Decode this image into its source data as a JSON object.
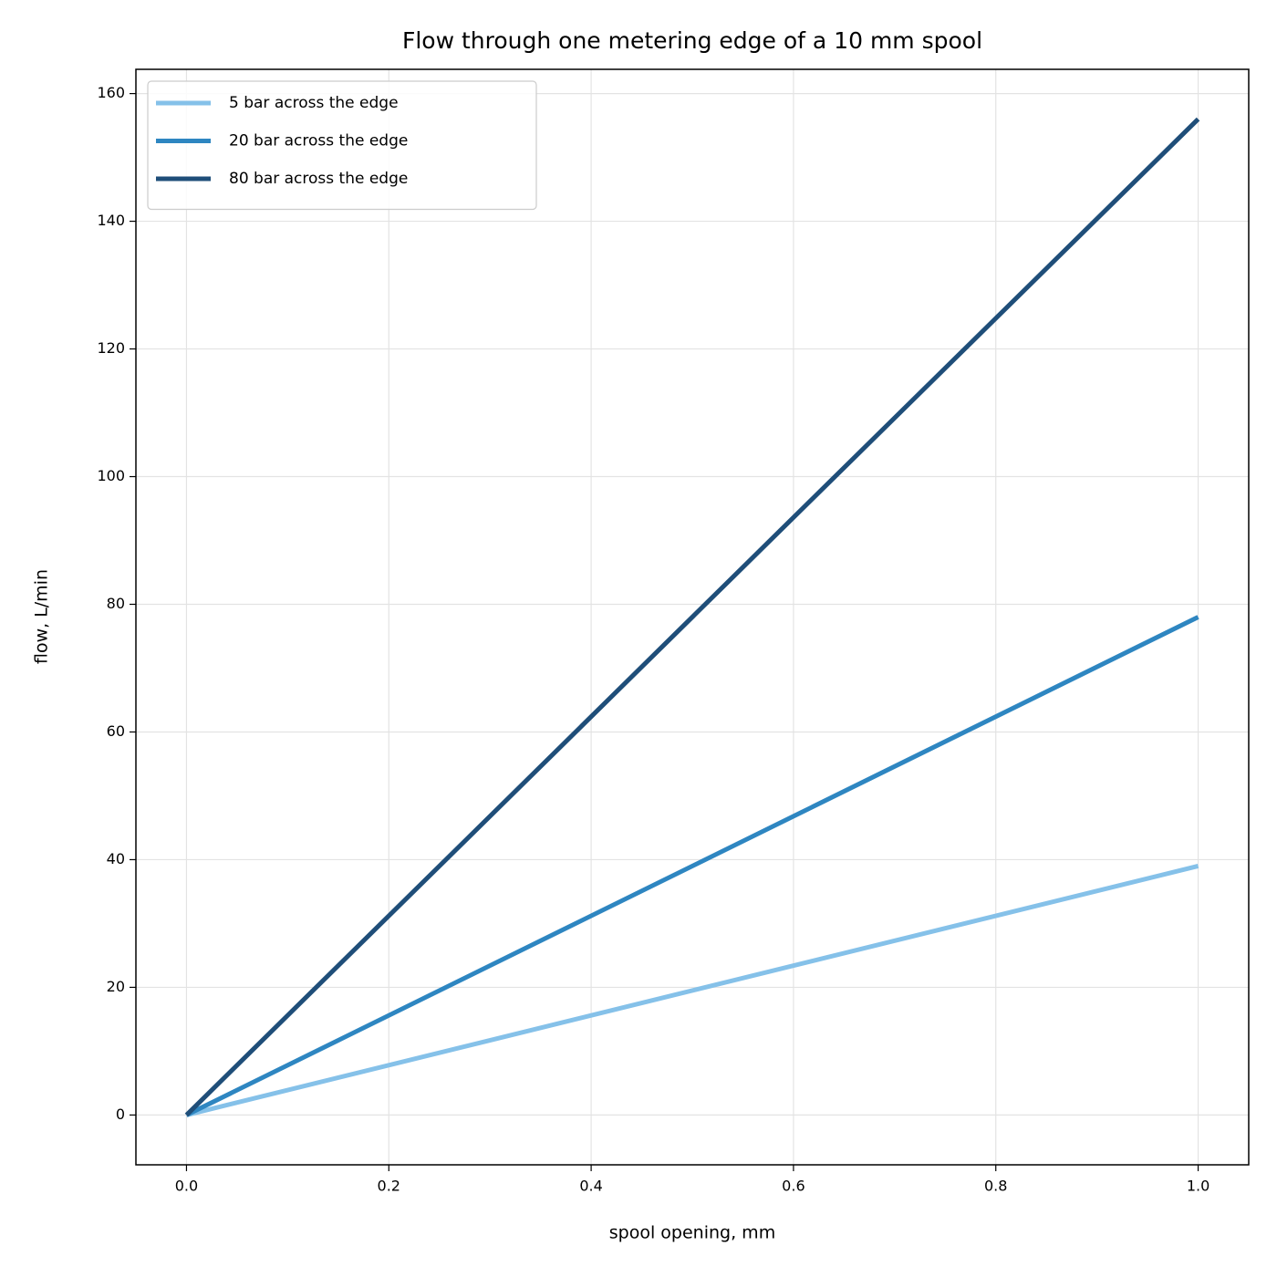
{
  "chart_data": {
    "type": "line",
    "title": "Flow through one metering edge of a 10 mm spool",
    "x_label": "spool opening, mm",
    "y_label": "flow, L/min",
    "x": [
      0,
      1
    ],
    "series": [
      {
        "name": "5 bar across the edge",
        "color": "#85c1e9",
        "values": [
          0,
          39
        ]
      },
      {
        "name": "20 bar across the edge",
        "color": "#2e86c1",
        "values": [
          0,
          78
        ]
      },
      {
        "name": "80 bar across the edge",
        "color": "#1f4e79",
        "values": [
          0,
          156
        ]
      }
    ],
    "xlim": [
      -0.05,
      1.05
    ],
    "ylim": [
      -7.8,
      163.8
    ],
    "xticks": [
      {
        "value": 0,
        "label": "0.0"
      },
      {
        "value": 0.2,
        "label": "0.2"
      },
      {
        "value": 0.4,
        "label": "0.4"
      },
      {
        "value": 0.6,
        "label": "0.6"
      },
      {
        "value": 0.8,
        "label": "0.8"
      },
      {
        "value": 1,
        "label": "1.0"
      }
    ],
    "yticks": [
      0,
      20,
      40,
      60,
      80,
      100,
      120,
      140,
      160
    ],
    "grid": true,
    "legend": "upper left"
  }
}
